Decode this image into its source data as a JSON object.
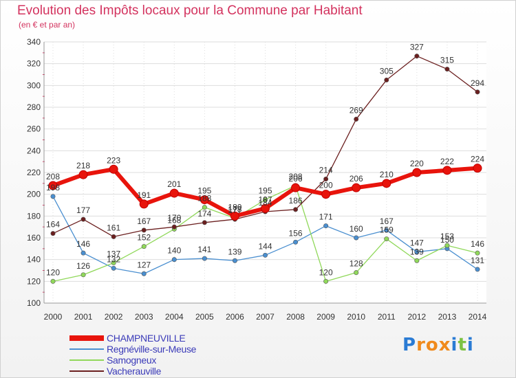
{
  "header": {
    "title": "Evolution des Impôts locaux pour la Commune par Habitant",
    "subtitle": "(en € et par an)"
  },
  "logo": {
    "text": "Proxiti",
    "letters": [
      "P",
      "r",
      "o",
      "x",
      "i",
      "t",
      "i"
    ],
    "colors": [
      "#2a7bd4",
      "#f08a1c",
      "#f08a1c",
      "#f08a1c",
      "#2a7bd4",
      "#7cc243",
      "#2a7bd4"
    ]
  },
  "chart_data": {
    "type": "line",
    "title": "Evolution des Impôts locaux pour la Commune par Habitant",
    "subtitle": "(en € et par an)",
    "xlabel": "",
    "ylabel": "",
    "categories": [
      "2000",
      "2001",
      "2002",
      "2003",
      "2004",
      "2005",
      "2006",
      "2007",
      "2008",
      "2009",
      "2010",
      "2011",
      "2012",
      "2013",
      "2014"
    ],
    "ylim": [
      100,
      340
    ],
    "yticks": [
      100,
      120,
      140,
      160,
      180,
      200,
      220,
      240,
      260,
      280,
      300,
      320,
      340
    ],
    "grid": true,
    "legend_position": "bottom-left",
    "series": [
      {
        "name": "CHAMPNEUVILLE",
        "color": "#e8140c",
        "emphasis": true,
        "values": [
          208,
          218,
          223,
          191,
          201,
          195,
          180,
          187,
          206,
          200,
          206,
          210,
          220,
          222,
          224
        ]
      },
      {
        "name": "Regnéville-sur-Meuse",
        "color": "#4a8fd0",
        "values": [
          198,
          146,
          132,
          127,
          140,
          141,
          139,
          144,
          156,
          171,
          160,
          167,
          147,
          150,
          131
        ]
      },
      {
        "name": "Samogneux",
        "color": "#90d85a",
        "values": [
          120,
          126,
          137,
          152,
          168,
          188,
          178,
          195,
          208,
          120,
          128,
          159,
          139,
          153,
          146
        ]
      },
      {
        "name": "Vacherauville",
        "color": "#6b1f1f",
        "values": [
          164,
          177,
          161,
          167,
          170,
          174,
          177,
          184,
          186,
          214,
          269,
          305,
          327,
          315,
          294
        ]
      }
    ]
  }
}
